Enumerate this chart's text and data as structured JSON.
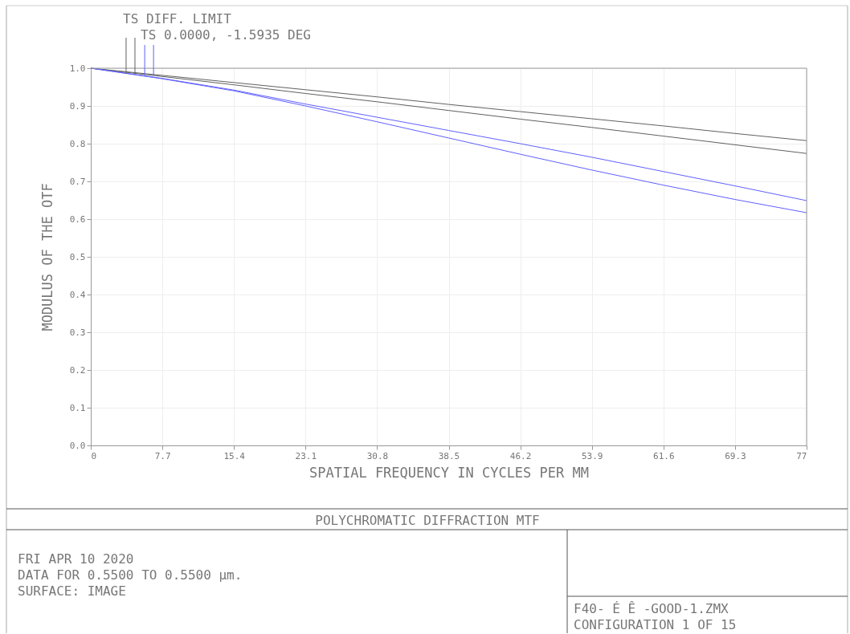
{
  "chart_data": {
    "type": "line",
    "title": "POLYCHROMATIC DIFFRACTION MTF",
    "xlabel": "SPATIAL FREQUENCY IN CYCLES PER MM",
    "ylabel": "MODULUS OF THE OTF",
    "x": [
      0,
      7.7,
      15.4,
      23.1,
      30.8,
      38.5,
      46.2,
      53.9,
      61.6,
      69.3,
      77
    ],
    "series": [
      {
        "color": "#606060",
        "values": [
          1,
          0.981,
          0.962,
          0.943,
          0.924,
          0.904,
          0.885,
          0.866,
          0.847,
          0.827,
          0.808
        ]
      },
      {
        "color": "#606060",
        "values": [
          1,
          0.978,
          0.956,
          0.933,
          0.911,
          0.888,
          0.865,
          0.843,
          0.82,
          0.797,
          0.774
        ]
      },
      {
        "color": "#6060ff",
        "values": [
          1,
          0.973,
          0.942,
          0.905,
          0.87,
          0.835,
          0.8,
          0.764,
          0.726,
          0.688,
          0.649
        ]
      },
      {
        "color": "#6060ff",
        "values": [
          1,
          0.972,
          0.94,
          0.9,
          0.858,
          0.815,
          0.772,
          0.73,
          0.69,
          0.652,
          0.617
        ]
      }
    ],
    "xlim": [
      0,
      77
    ],
    "xticks": [
      {
        "value": 0,
        "label": "0"
      },
      7.7,
      15.4,
      23.1,
      30.8,
      38.5,
      46.2,
      53.9,
      61.6,
      69.3,
      77
    ],
    "ylim": [
      0,
      1
    ],
    "yticks": [
      {
        "value": 0,
        "label": "0.0"
      },
      0.1,
      0.2,
      0.3,
      0.4,
      0.5,
      0.6,
      0.7,
      0.8,
      0.9,
      {
        "value": 1,
        "label": "1.0"
      }
    ],
    "grid": true,
    "annotations": [
      {
        "text": "TS DIFF. LIMIT",
        "x": 3.8,
        "y": 0.985
      },
      {
        "text": "TS 0.0000, -1.5935 DEG",
        "x": 5.8,
        "y": 0.98
      },
      "FRI APR 10 2020",
      "DATA FOR 0.5500 TO 0.5500 µm.",
      "SURFACE: IMAGE",
      "F40-  É Ê -GOOD-1.ZMX",
      "CONFIGURATION 1 OF 15"
    ]
  }
}
